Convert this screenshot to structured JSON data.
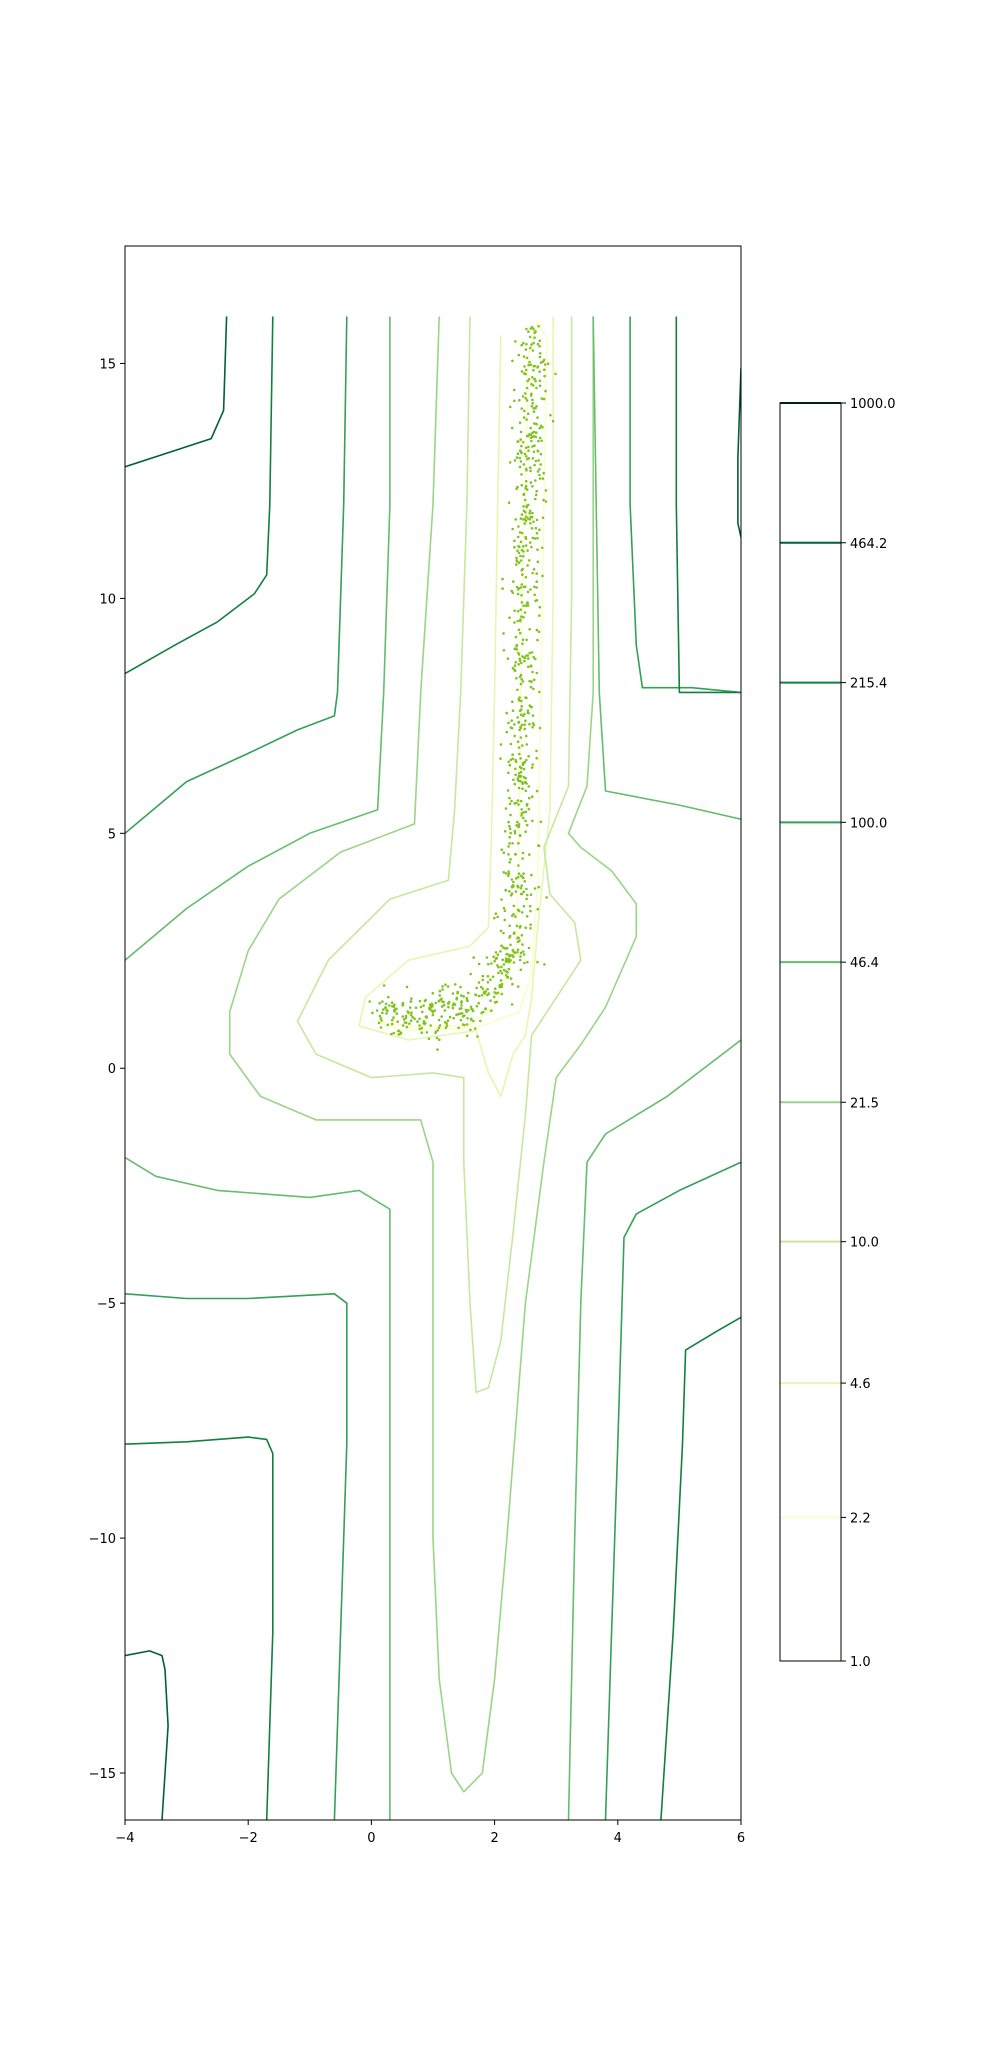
{
  "chart_data": {
    "type": "contour",
    "title": "",
    "xlabel": "",
    "ylabel": "",
    "xlim": [
      -4,
      6
    ],
    "ylim": [
      -16,
      17.5
    ],
    "x_ticks": [
      "−4",
      "−2",
      "0",
      "2",
      "4",
      "6"
    ],
    "x_tick_values": [
      -4,
      -2,
      0,
      2,
      4,
      6
    ],
    "y_ticks": [
      "−15",
      "−10",
      "−5",
      "0",
      "5",
      "10",
      "15"
    ],
    "y_tick_values": [
      -15,
      -10,
      -5,
      0,
      5,
      10,
      15
    ],
    "grid": false,
    "colormap": "YlGn (log-scaled levels)",
    "colorbar": {
      "placement": "right",
      "levels": [
        1.0,
        2.2,
        4.6,
        10.0,
        21.5,
        46.4,
        100.0,
        215.4,
        464.2,
        1000.0
      ],
      "labels": [
        "1.0",
        "2.2",
        "4.6",
        "10.0",
        "21.5",
        "46.4",
        "100.0",
        "215.4",
        "464.2",
        "1000.0"
      ],
      "colors": [
        "#ffffe5",
        "#fbfdcb",
        "#e9f6b0",
        "#c7e89b",
        "#99d587",
        "#64bc6e",
        "#33a055",
        "#11803f",
        "#006134",
        "#004529"
      ]
    },
    "contours": [
      {
        "level": 2.2,
        "color": "#fbfdcb",
        "paths": [
          [
            [
              0.1,
              1.0
            ],
            [
              0.5,
              0.8
            ],
            [
              1.5,
              0.85
            ],
            [
              2.0,
              1.3
            ],
            [
              2.35,
              2.5
            ],
            [
              2.4,
              5
            ],
            [
              2.45,
              10
            ],
            [
              2.55,
              15.2
            ],
            [
              2.7,
              15.9
            ],
            [
              2.85,
              15.5
            ],
            [
              2.8,
              12
            ],
            [
              2.75,
              8
            ],
            [
              2.7,
              4
            ],
            [
              2.6,
              2.0
            ],
            [
              2.4,
              1.2
            ],
            [
              1.8,
              0.9
            ],
            [
              0.6,
              0.9
            ],
            [
              0.1,
              1.0
            ]
          ]
        ]
      },
      {
        "level": 4.6,
        "color": "#e9f6b0",
        "paths": [
          [
            [
              2.1,
              15.6
            ],
            [
              2.05,
              12
            ],
            [
              2.0,
              8
            ],
            [
              1.95,
              5
            ],
            [
              1.9,
              3.0
            ],
            [
              1.6,
              2.6
            ],
            [
              0.6,
              2.3
            ],
            [
              -0.1,
              1.5
            ],
            [
              -0.2,
              0.9
            ],
            [
              0.6,
              0.6
            ],
            [
              1.7,
              0.8
            ],
            [
              1.9,
              -0.1
            ],
            [
              2.1,
              -0.6
            ],
            [
              2.3,
              0.3
            ],
            [
              2.5,
              0.7
            ],
            [
              2.6,
              1.5
            ],
            [
              2.7,
              3.0
            ],
            [
              2.9,
              5.5
            ],
            [
              2.95,
              10
            ],
            [
              2.95,
              14
            ],
            [
              2.95,
              16
            ]
          ]
        ]
      },
      {
        "level": 10.0,
        "color": "#c7e89b",
        "paths": [
          [
            [
              1.6,
              16
            ],
            [
              1.55,
              12
            ],
            [
              1.45,
              8
            ],
            [
              1.35,
              5.5
            ],
            [
              1.25,
              4.0
            ],
            [
              0.3,
              3.6
            ],
            [
              -0.7,
              2.3
            ],
            [
              -1.2,
              1.0
            ],
            [
              -0.9,
              0.3
            ],
            [
              0.0,
              -0.2
            ],
            [
              1.0,
              -0.1
            ],
            [
              1.5,
              -0.2
            ],
            [
              1.5,
              -2
            ],
            [
              1.6,
              -5
            ],
            [
              1.7,
              -6.9
            ],
            [
              1.9,
              -6.8
            ],
            [
              2.1,
              -5.8
            ],
            [
              2.3,
              -3.5
            ],
            [
              2.5,
              -1
            ],
            [
              2.6,
              0.7
            ],
            [
              3.0,
              1.5
            ],
            [
              3.4,
              2.3
            ],
            [
              3.3,
              3.1
            ],
            [
              2.9,
              3.7
            ],
            [
              2.8,
              4.7
            ],
            [
              3.2,
              6.0
            ],
            [
              3.25,
              10
            ],
            [
              3.25,
              16
            ]
          ]
        ]
      },
      {
        "level": 21.5,
        "color": "#99d587",
        "paths": [
          [
            [
              1.1,
              16
            ],
            [
              1.0,
              12
            ],
            [
              0.8,
              8
            ],
            [
              0.7,
              5.2
            ],
            [
              -0.5,
              4.6
            ],
            [
              -1.5,
              3.6
            ],
            [
              -2.0,
              2.5
            ],
            [
              -2.3,
              1.2
            ],
            [
              -2.3,
              0.3
            ],
            [
              -1.8,
              -0.6
            ],
            [
              -0.9,
              -1.1
            ],
            [
              0.8,
              -1.1
            ],
            [
              1.0,
              -2
            ],
            [
              1.0,
              -5
            ],
            [
              1.0,
              -10
            ],
            [
              1.1,
              -13
            ],
            [
              1.3,
              -15
            ],
            [
              1.5,
              -15.4
            ],
            [
              1.8,
              -15.0
            ],
            [
              2.0,
              -13
            ],
            [
              2.2,
              -10
            ],
            [
              2.5,
              -5
            ],
            [
              2.8,
              -2
            ],
            [
              3.0,
              -0.2
            ],
            [
              3.4,
              0.5
            ],
            [
              3.8,
              1.3
            ],
            [
              4.3,
              2.8
            ],
            [
              4.3,
              3.5
            ],
            [
              3.9,
              4.2
            ],
            [
              3.4,
              4.7
            ],
            [
              3.2,
              5.0
            ],
            [
              3.5,
              6.0
            ],
            [
              3.6,
              8
            ],
            [
              3.6,
              12
            ],
            [
              3.6,
              16
            ]
          ]
        ]
      },
      {
        "level": 46.4,
        "color": "#64bc6e",
        "paths": [
          [
            [
              0.3,
              16
            ],
            [
              0.3,
              12
            ],
            [
              0.2,
              8
            ],
            [
              0.1,
              5.5
            ],
            [
              -1.0,
              5.0
            ],
            [
              -2.0,
              4.3
            ],
            [
              -3.0,
              3.4
            ],
            [
              -4.0,
              2.3
            ]
          ],
          [
            [
              -4.0,
              -1.9
            ],
            [
              -3.5,
              -2.3
            ],
            [
              -2.5,
              -2.6
            ],
            [
              -1.0,
              -2.75
            ],
            [
              -0.2,
              -2.6
            ],
            [
              0.3,
              -3.0
            ],
            [
              0.3,
              -8
            ],
            [
              0.3,
              -12
            ],
            [
              0.3,
              -16
            ]
          ],
          [
            [
              3.6,
              16
            ],
            [
              3.65,
              12
            ],
            [
              3.7,
              8
            ],
            [
              3.8,
              5.9
            ],
            [
              4.2,
              5.8
            ],
            [
              5.0,
              5.6
            ],
            [
              6.0,
              5.3
            ]
          ],
          [
            [
              6.0,
              0.6
            ],
            [
              5.5,
              0.1
            ],
            [
              4.8,
              -0.6
            ],
            [
              3.8,
              -1.4
            ],
            [
              3.5,
              -2
            ],
            [
              3.4,
              -5
            ],
            [
              3.3,
              -10
            ],
            [
              3.2,
              -16
            ]
          ]
        ]
      },
      {
        "level": 100.0,
        "color": "#33a055",
        "paths": [
          [
            [
              -0.4,
              16
            ],
            [
              -0.45,
              12
            ],
            [
              -0.55,
              8
            ],
            [
              -0.6,
              7.5
            ],
            [
              -1.2,
              7.2
            ],
            [
              -2.0,
              6.7
            ],
            [
              -3.0,
              6.1
            ],
            [
              -4.0,
              5.0
            ]
          ],
          [
            [
              -4.0,
              -4.8
            ],
            [
              -3.0,
              -4.9
            ],
            [
              -2.0,
              -4.9
            ],
            [
              -0.6,
              -4.8
            ],
            [
              -0.4,
              -5.0
            ],
            [
              -0.4,
              -8
            ],
            [
              -0.5,
              -12
            ],
            [
              -0.6,
              -16
            ]
          ],
          [
            [
              4.2,
              16
            ],
            [
              4.2,
              12
            ],
            [
              4.3,
              9.0
            ],
            [
              4.4,
              8.1
            ],
            [
              5.2,
              8.1
            ],
            [
              6.0,
              8.0
            ]
          ],
          [
            [
              6.0,
              -2.0
            ],
            [
              5.0,
              -2.6
            ],
            [
              4.3,
              -3.1
            ],
            [
              4.1,
              -3.6
            ],
            [
              4.0,
              -8
            ],
            [
              3.9,
              -12
            ],
            [
              3.8,
              -16
            ]
          ]
        ]
      },
      {
        "level": 215.4,
        "color": "#11803f",
        "paths": [
          [
            [
              -1.6,
              16
            ],
            [
              -1.65,
              12
            ],
            [
              -1.7,
              10.5
            ],
            [
              -1.9,
              10.1
            ],
            [
              -2.5,
              9.5
            ],
            [
              -3.2,
              9.0
            ],
            [
              -4.0,
              8.4
            ]
          ],
          [
            [
              -4.0,
              -8.0
            ],
            [
              -3.0,
              -7.95
            ],
            [
              -2.0,
              -7.85
            ],
            [
              -1.7,
              -7.9
            ],
            [
              -1.6,
              -8.2
            ],
            [
              -1.6,
              -12
            ],
            [
              -1.7,
              -16
            ]
          ],
          [
            [
              4.95,
              16
            ],
            [
              4.95,
              12
            ],
            [
              5.0,
              8
            ],
            [
              5.2,
              8.0
            ],
            [
              6.0,
              8.0
            ]
          ],
          [
            [
              6.0,
              -5.3
            ],
            [
              5.6,
              -5.6
            ],
            [
              5.1,
              -6.0
            ],
            [
              5.05,
              -8
            ],
            [
              4.9,
              -12
            ],
            [
              4.7,
              -16
            ]
          ]
        ]
      },
      {
        "level": 464.2,
        "color": "#006134",
        "paths": [
          [
            [
              -2.35,
              16
            ],
            [
              -2.4,
              14.0
            ],
            [
              -2.6,
              13.4
            ],
            [
              -3.3,
              13.1
            ],
            [
              -4.0,
              12.8
            ]
          ],
          [
            [
              -4.0,
              -12.5
            ],
            [
              -3.6,
              -12.4
            ],
            [
              -3.4,
              -12.5
            ],
            [
              -3.35,
              -12.8
            ],
            [
              -3.3,
              -14
            ],
            [
              -3.4,
              -16
            ]
          ],
          [
            [
              6.0,
              14.9
            ],
            [
              5.95,
              13
            ],
            [
              5.95,
              11.6
            ],
            [
              6.0,
              11.3
            ]
          ]
        ]
      }
    ],
    "scatter": {
      "color": "#7fc31d",
      "description": "sample points concentrated along narrow ridge x≈2.4–2.7 from y≈3 to y≈16, and a curved cluster near (0.2–2.2, 0.8–2.2)",
      "n_points": 900
    }
  }
}
